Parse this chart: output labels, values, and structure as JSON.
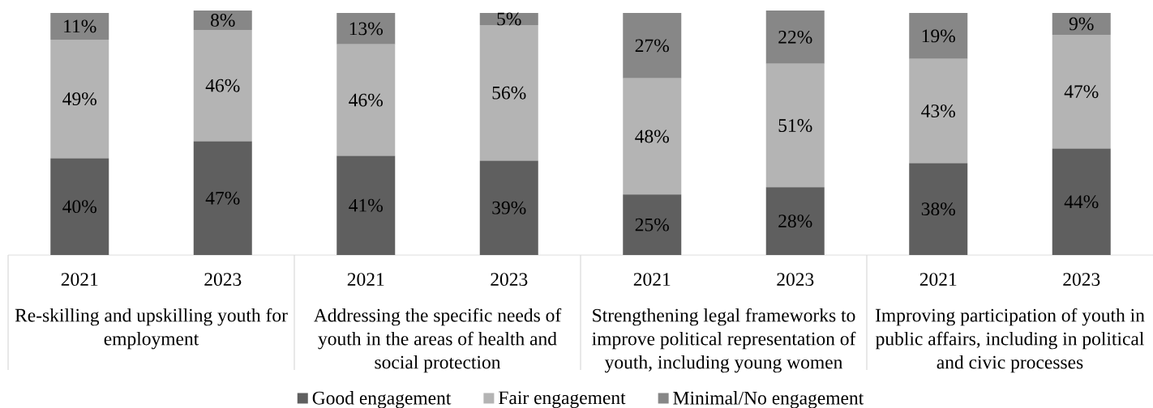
{
  "chart_data": {
    "type": "bar",
    "stacked": true,
    "categories": [
      "2021",
      "2023",
      "2021",
      "2023",
      "2021",
      "2023",
      "2021",
      "2023"
    ],
    "series": [
      {
        "name": "Good engagement",
        "color": "#5f5f5f",
        "values": [
          40,
          47,
          41,
          39,
          25,
          28,
          38,
          44
        ],
        "value_labels": [
          "40%",
          "47%",
          "41%",
          "39%",
          "25%",
          "28%",
          "38%",
          "44%"
        ]
      },
      {
        "name": "Fair engagement",
        "color": "#b4b4b4",
        "values": [
          49,
          46,
          46,
          56,
          48,
          51,
          43,
          47
        ],
        "value_labels": [
          "49%",
          "46%",
          "46%",
          "56%",
          "48%",
          "51%",
          "43%",
          "47%"
        ]
      },
      {
        "name": "Minimal/No engagement",
        "color": "#878787",
        "values": [
          11,
          8,
          13,
          5,
          27,
          22,
          19,
          9
        ],
        "value_labels": [
          "11%",
          "8%",
          "13%",
          "5%",
          "27%",
          "22%",
          "19%",
          "9%"
        ]
      }
    ],
    "annotations": [
      "Re-skilling and upskilling youth for employment",
      "Addressing the specific needs of youth in the areas of health and social protection",
      "Strengthening legal frameworks to improve political representation of youth, including young women",
      "Improving participation of youth in public affairs, including in political and civic processes"
    ],
    "legend": "bottom"
  }
}
